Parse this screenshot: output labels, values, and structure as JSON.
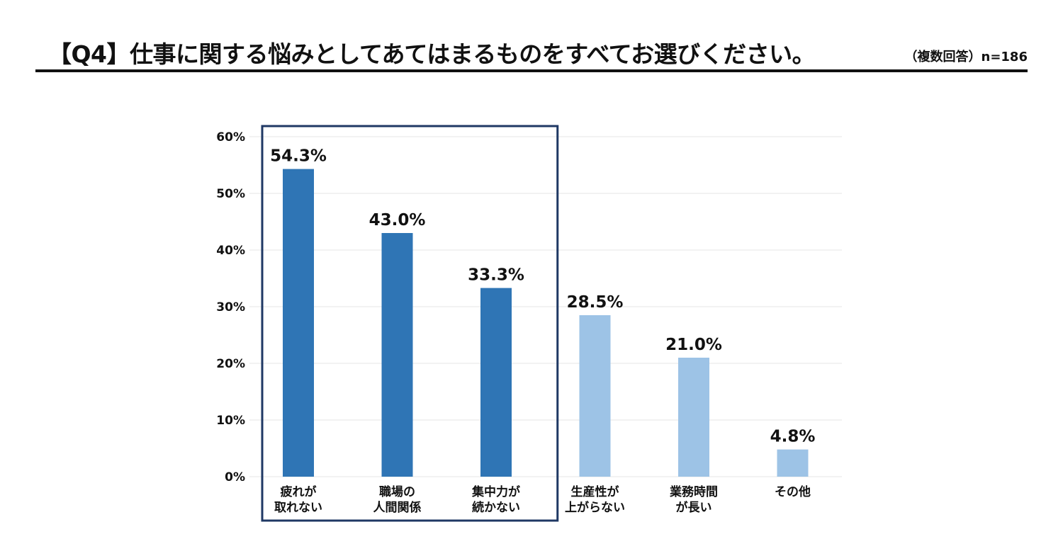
{
  "header": {
    "title": "【Q4】仕事に関する悩みとしてあてはまるものをすべてお選びください。",
    "note": "（複数回答）n=186"
  },
  "chart_data": {
    "type": "bar",
    "categories": [
      [
        "疲れが",
        "取れない"
      ],
      [
        "職場の",
        "人間関係"
      ],
      [
        "集中力が",
        "続かない"
      ],
      [
        "生産性が",
        "上がらない"
      ],
      [
        "業務時間",
        "が長い"
      ],
      [
        "その他"
      ]
    ],
    "values": [
      54.3,
      43.0,
      33.3,
      28.5,
      21.0,
      4.8
    ],
    "value_labels": [
      "54.3%",
      "43.0%",
      "33.3%",
      "28.5%",
      "21.0%",
      "4.8%"
    ],
    "yticks": [
      "0%",
      "10%",
      "20%",
      "30%",
      "40%",
      "50%",
      "60%"
    ],
    "ylim": [
      0,
      60
    ],
    "highlighted_count": 3,
    "colors": {
      "highlight": "#2f75b5",
      "normal": "#9dc3e6",
      "frame": "#1f3864",
      "grid": "#e6e6e6"
    },
    "grid": true
  }
}
